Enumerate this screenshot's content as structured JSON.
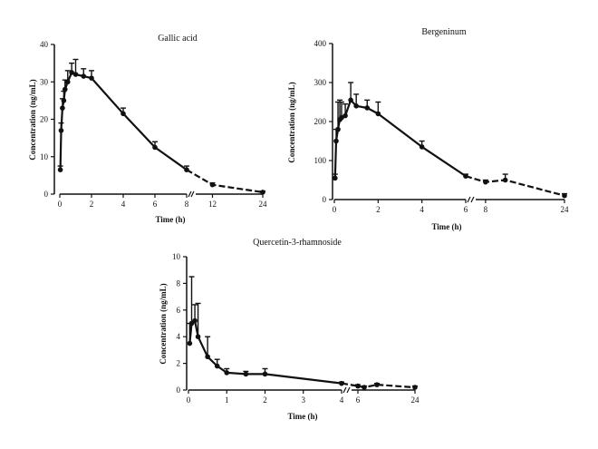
{
  "chart_data": [
    {
      "type": "line",
      "title": "Gallic acid",
      "xlabel": "Time (h)",
      "ylabel": "Concentration (ng/mL)",
      "ylim": [
        0,
        40
      ],
      "y_ticks": [
        0,
        10,
        20,
        30,
        40
      ],
      "x_segments": [
        {
          "range": [
            0,
            8
          ],
          "ticks": [
            0,
            2,
            4,
            6,
            8
          ]
        },
        {
          "range": [
            8,
            24
          ],
          "ticks": [
            12,
            24
          ]
        }
      ],
      "series": [
        {
          "x": [
            0.033,
            0.083,
            0.167,
            0.25,
            0.33,
            0.5,
            0.75,
            1.0,
            1.5,
            2,
            4,
            6,
            8,
            12,
            24
          ],
          "y": [
            6.5,
            17,
            23,
            25,
            28,
            30,
            32.5,
            32,
            31.5,
            31,
            21.5,
            12.5,
            6.5,
            2.5,
            0.5
          ],
          "err": [
            1,
            2,
            2.5,
            2.5,
            2.5,
            3,
            2.5,
            4,
            2,
            2,
            1.5,
            1.5,
            1,
            0.5,
            0.3
          ]
        }
      ],
      "grid": false
    },
    {
      "type": "line",
      "title": "Bergeninum",
      "xlabel": "Time (h)",
      "ylabel": "Concentration (ng/mL)",
      "ylim": [
        0,
        400
      ],
      "y_ticks": [
        0,
        100,
        200,
        300,
        400
      ],
      "x_segments": [
        {
          "range": [
            0,
            6
          ],
          "ticks": [
            0,
            2,
            4,
            6
          ]
        },
        {
          "range": [
            6,
            24
          ],
          "ticks": [
            8,
            24
          ]
        }
      ],
      "series": [
        {
          "x": [
            0.033,
            0.083,
            0.167,
            0.25,
            0.33,
            0.5,
            0.75,
            1.0,
            1.5,
            2,
            4,
            6,
            8,
            12,
            24
          ],
          "y": [
            55,
            150,
            180,
            205,
            210,
            215,
            255,
            240,
            235,
            220,
            135,
            60,
            45,
            50,
            10
          ],
          "err": [
            10,
            30,
            70,
            50,
            40,
            30,
            45,
            30,
            20,
            30,
            15,
            5,
            5,
            15,
            5
          ]
        }
      ],
      "grid": false
    },
    {
      "type": "line",
      "title": "Quercetin-3-rhamnoside",
      "xlabel": "Time (h)",
      "ylabel": "Concentration (ng/mL)",
      "ylim": [
        0,
        10
      ],
      "y_ticks": [
        0,
        2,
        4,
        6,
        8,
        10
      ],
      "x_segments": [
        {
          "range": [
            0,
            4
          ],
          "ticks": [
            0,
            1,
            2,
            3,
            4
          ]
        },
        {
          "range": [
            4,
            24
          ],
          "ticks": [
            6,
            24
          ]
        }
      ],
      "series": [
        {
          "x": [
            0.033,
            0.083,
            0.167,
            0.25,
            0.5,
            0.75,
            1.0,
            1.5,
            2,
            4,
            6,
            8,
            12,
            24
          ],
          "y": [
            3.5,
            5.0,
            5.2,
            4.0,
            2.5,
            1.8,
            1.3,
            1.2,
            1.2,
            0.5,
            0.3,
            0.2,
            0.4,
            0.2
          ],
          "err": [
            1.5,
            3.5,
            1.2,
            2.5,
            1.5,
            0.5,
            0.3,
            0.2,
            0.4,
            0.1,
            0.1,
            0.1,
            0.1,
            0.1
          ]
        }
      ],
      "grid": false
    }
  ]
}
